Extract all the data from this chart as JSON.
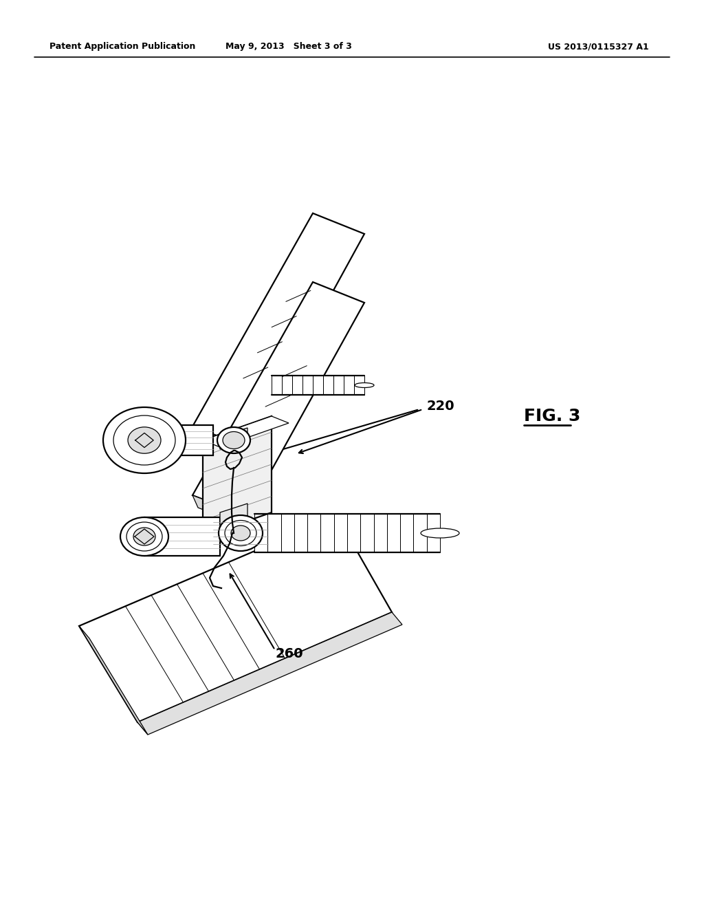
{
  "background_color": "#ffffff",
  "header_left": "Patent Application Publication",
  "header_mid": "May 9, 2013   Sheet 3 of 3",
  "header_right": "US 2013/0115327 A1",
  "fig_label": "FIG. 3",
  "label_220": "220",
  "label_260": "260",
  "lw_main": 1.6,
  "lw_thin": 0.9,
  "lw_thick": 2.2
}
